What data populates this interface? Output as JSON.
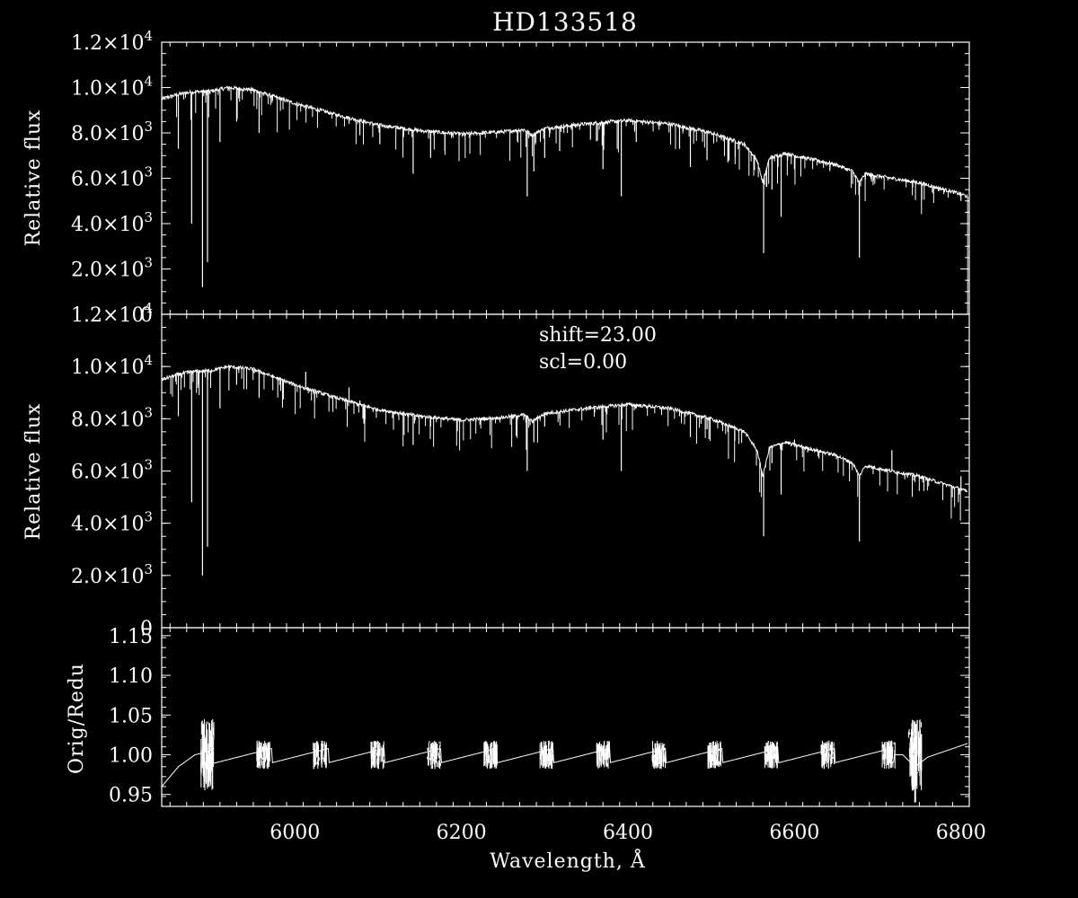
{
  "chart_data": [
    {
      "panel": "top",
      "type": "line",
      "title": "HD133518",
      "ylabel": "Relative flux",
      "xlim": [
        5840,
        6810
      ],
      "ylim": [
        0,
        12000
      ],
      "ytick_labels": [
        {
          "v": 0,
          "label": "0"
        },
        {
          "v": 2000,
          "label": "2.0×10",
          "exp": "3"
        },
        {
          "v": 4000,
          "label": "4.0×10",
          "exp": "3"
        },
        {
          "v": 6000,
          "label": "6.0×10",
          "exp": "3"
        },
        {
          "v": 8000,
          "label": "8.0×10",
          "exp": "3"
        },
        {
          "v": 10000,
          "label": "1.0×10",
          "exp": "4"
        },
        {
          "v": 12000,
          "label": "1.2×10",
          "exp": "4"
        }
      ],
      "continuum": [
        [
          5840,
          9500
        ],
        [
          5860,
          9700
        ],
        [
          5875,
          9800
        ],
        [
          5900,
          9850
        ],
        [
          5920,
          10000
        ],
        [
          5950,
          9900
        ],
        [
          6000,
          9300
        ],
        [
          6050,
          8800
        ],
        [
          6100,
          8350
        ],
        [
          6150,
          8100
        ],
        [
          6200,
          7950
        ],
        [
          6250,
          8050
        ],
        [
          6275,
          8150
        ],
        [
          6285,
          7900
        ],
        [
          6300,
          8200
        ],
        [
          6350,
          8400
        ],
        [
          6400,
          8550
        ],
        [
          6450,
          8400
        ],
        [
          6500,
          8000
        ],
        [
          6540,
          7500
        ],
        [
          6555,
          6800
        ],
        [
          6562,
          5800
        ],
        [
          6570,
          6900
        ],
        [
          6590,
          7100
        ],
        [
          6600,
          7000
        ],
        [
          6650,
          6600
        ],
        [
          6670,
          6300
        ],
        [
          6678,
          5800
        ],
        [
          6685,
          6200
        ],
        [
          6700,
          6100
        ],
        [
          6750,
          5800
        ],
        [
          6800,
          5300
        ],
        [
          6808,
          5200
        ]
      ],
      "absorption_lines": [
        [
          5876,
          4000
        ],
        [
          5889,
          1200
        ],
        [
          5895,
          2300
        ],
        [
          5860,
          7300
        ],
        [
          5910,
          7600
        ],
        [
          5930,
          8500
        ],
        [
          5957,
          8000
        ],
        [
          6013,
          9000
        ],
        [
          6065,
          8400
        ],
        [
          6078,
          7900
        ],
        [
          6102,
          7500
        ],
        [
          6142,
          6200
        ],
        [
          6163,
          6900
        ],
        [
          6279,
          5200
        ],
        [
          6287,
          6300
        ],
        [
          6300,
          6900
        ],
        [
          6318,
          7200
        ],
        [
          6355,
          7700
        ],
        [
          6370,
          6400
        ],
        [
          6392,
          5200
        ],
        [
          6410,
          7600
        ],
        [
          6462,
          7300
        ],
        [
          6475,
          6500
        ],
        [
          6495,
          6800
        ],
        [
          6520,
          6700
        ],
        [
          6563,
          2700
        ],
        [
          6573,
          5500
        ],
        [
          6584,
          4300
        ],
        [
          6600,
          6400
        ],
        [
          6678,
          2500
        ],
        [
          6717,
          6000
        ],
        [
          6800,
          5000
        ]
      ]
    },
    {
      "panel": "middle",
      "type": "line",
      "ylabel": "Relative flux",
      "xlim": [
        5840,
        6810
      ],
      "ylim": [
        0,
        12000
      ],
      "annotations": [
        "shift=23.00",
        "scl=0.00"
      ],
      "ytick_labels": [
        {
          "v": 0,
          "label": "0"
        },
        {
          "v": 2000,
          "label": "2.0×10",
          "exp": "3"
        },
        {
          "v": 4000,
          "label": "4.0×10",
          "exp": "3"
        },
        {
          "v": 6000,
          "label": "6.0×10",
          "exp": "3"
        },
        {
          "v": 8000,
          "label": "8.0×10",
          "exp": "3"
        },
        {
          "v": 10000,
          "label": "1.0×10",
          "exp": "4"
        },
        {
          "v": 12000,
          "label": "1.2×10",
          "exp": "4"
        }
      ]
    },
    {
      "panel": "bottom",
      "type": "line",
      "ylabel": "Orig/Redu",
      "xlabel": "Wavelength, Å",
      "xlim": [
        5840,
        6810
      ],
      "ylim": [
        0.935,
        1.16
      ],
      "ytick_labels": [
        {
          "v": 0.95,
          "label": "0.95"
        },
        {
          "v": 1.0,
          "label": "1.00"
        },
        {
          "v": 1.05,
          "label": "1.05"
        },
        {
          "v": 1.1,
          "label": "1.10"
        },
        {
          "v": 1.15,
          "label": "1.15"
        }
      ],
      "xtick_labels": [
        "6000",
        "6200",
        "6400",
        "6600",
        "6800"
      ],
      "xtick_values": [
        6000,
        6200,
        6400,
        6600,
        6800
      ],
      "ratio_baseline": [
        [
          5840,
          0.96
        ],
        [
          5860,
          0.985
        ],
        [
          5880,
          1.0
        ],
        [
          5900,
          1.005
        ],
        [
          5950,
          0.99
        ],
        [
          6000,
          1.005
        ],
        [
          6400,
          1.0
        ],
        [
          6730,
          1.0
        ],
        [
          6745,
          0.985
        ],
        [
          6760,
          0.997
        ],
        [
          6810,
          1.015
        ]
      ],
      "wiggle_centers": [
        5895,
        5962,
        6030,
        6099,
        6167,
        6235,
        6302,
        6370,
        6437,
        6504,
        6572,
        6640,
        6713,
        6745
      ]
    }
  ]
}
